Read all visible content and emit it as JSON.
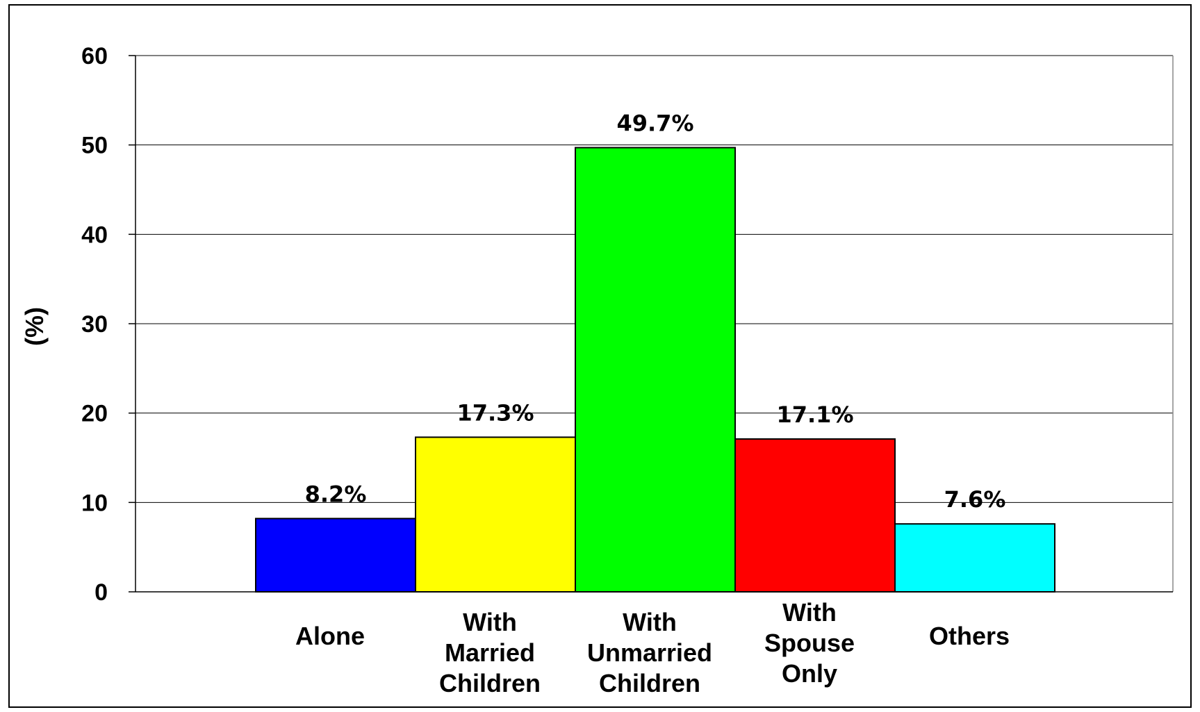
{
  "chart_data": {
    "type": "bar",
    "title": "",
    "xlabel": "",
    "ylabel": "(%)",
    "ylim": [
      0,
      60
    ],
    "yticks": [
      0,
      10,
      20,
      30,
      40,
      50,
      60
    ],
    "grid": true,
    "categories": [
      "Alone",
      "With Married Children",
      "With Unmarried Children",
      "With Spouse Only",
      "Others"
    ],
    "values": [
      8.2,
      17.3,
      49.7,
      17.1,
      7.6
    ],
    "data_labels": [
      "8.2%",
      "17.3%",
      "49.7%",
      "17.1%",
      "7.6%"
    ],
    "colors": [
      "#0000ff",
      "#ffff00",
      "#00ff00",
      "#ff0000",
      "#00ffff"
    ]
  }
}
